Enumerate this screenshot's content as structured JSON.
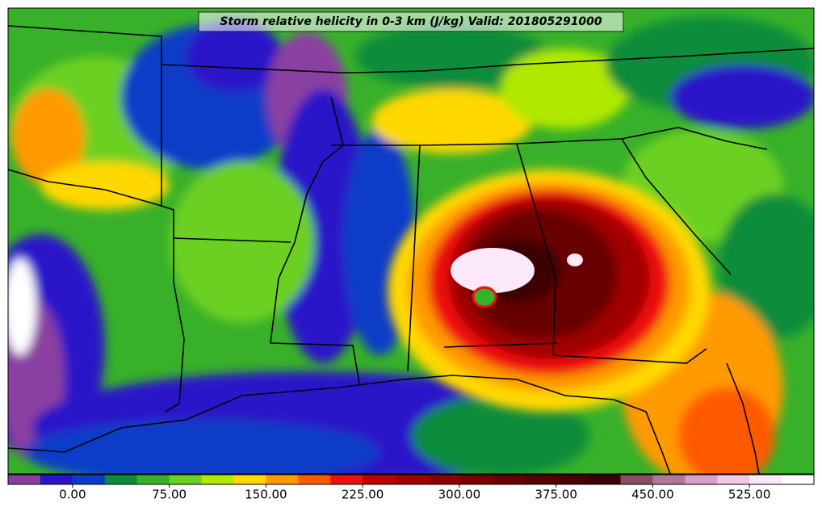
{
  "map": {
    "title": "Storm relative helicity in 0-3 km (J/kg) Valid: 201805291000",
    "colorbar": {
      "levels": [
        -50,
        -25,
        0,
        25,
        50,
        75,
        100,
        125,
        150,
        175,
        200,
        225,
        250,
        275,
        300,
        325,
        350,
        375,
        400,
        425,
        450,
        475,
        500,
        525,
        550,
        575
      ],
      "colors": [
        "#8a3fa0",
        "#2a14c8",
        "#0a3cc8",
        "#0c8c3a",
        "#38b02a",
        "#6cd020",
        "#b0e800",
        "#ffd800",
        "#ff9a00",
        "#ff5a00",
        "#ee1010",
        "#c00000",
        "#a00000",
        "#8c0000",
        "#780000",
        "#680000",
        "#580000",
        "#4a0000",
        "#3c0000",
        "#885060",
        "#b07898",
        "#d8a0c8",
        "#f0c8e8",
        "#fbe8f8",
        "#ffffff"
      ],
      "ticks": [
        {
          "value": 0,
          "label": "0.00"
        },
        {
          "value": 75,
          "label": "75.00"
        },
        {
          "value": 150,
          "label": "150.00"
        },
        {
          "value": 225,
          "label": "225.00"
        },
        {
          "value": 300,
          "label": "300.00"
        },
        {
          "value": 375,
          "label": "375.00"
        },
        {
          "value": 450,
          "label": "450.00"
        },
        {
          "value": 525,
          "label": "525.00"
        }
      ]
    }
  }
}
